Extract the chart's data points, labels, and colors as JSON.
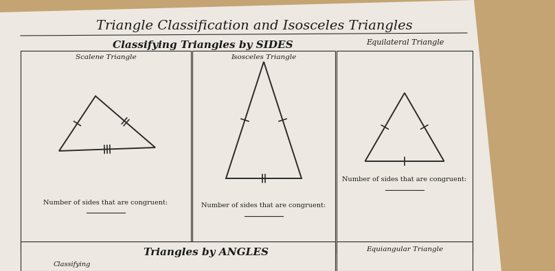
{
  "title": "Triangle Classification and Isosceles Triangles",
  "section_title": "Classifying Triangles by SIDES",
  "bg_tan": "#c4a472",
  "bg_paper": "#ede9e2",
  "line_color": "#2a2a2a",
  "text_color": "#1a1a1a",
  "angles_title": "Triangles by ANGLES",
  "angles_sublabel": "Classifying Triangles by",
  "angles_label": "Equiangular Triangle",
  "col_labels": [
    "Scalene Triangle",
    "Isosceles Triangle",
    "Equilateral Triangle"
  ],
  "bottom_text": "Number of sides that are congruent:",
  "paper_skew_deg": -4
}
